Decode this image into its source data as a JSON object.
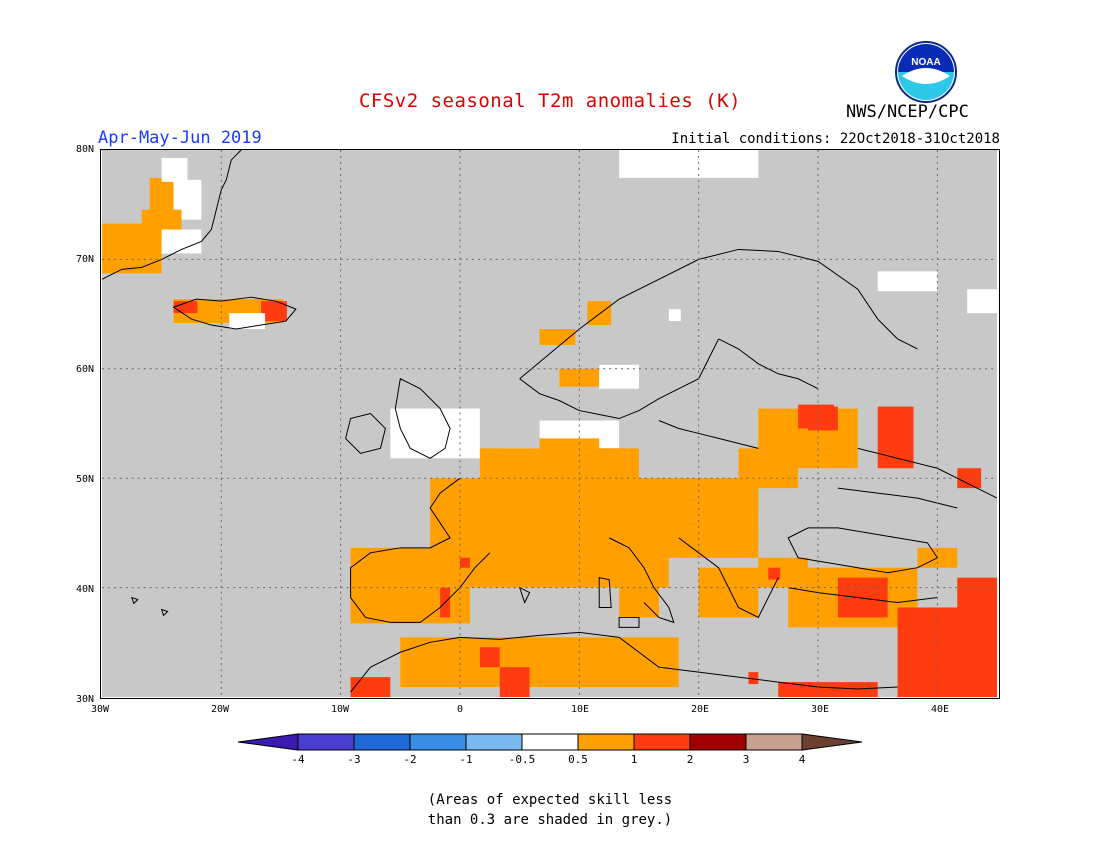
{
  "header": {
    "title": "CFSv2 seasonal T2m anomalies (K)",
    "agency": "NWS/NCEP/CPC",
    "period": "Apr-May-Jun 2019",
    "initial_conditions": "Initial conditions: 22Oct2018-31Oct2018",
    "logo_text": "NOAA"
  },
  "map": {
    "lon_range": [
      -30,
      45
    ],
    "lat_range": [
      30,
      80
    ],
    "lat_labels": [
      "80N",
      "70N",
      "60N",
      "50N",
      "40N",
      "30N"
    ],
    "lon_labels": [
      "30W",
      "20W",
      "10W",
      "0",
      "10E",
      "20E",
      "30E",
      "40E"
    ],
    "background_color": "#c8c8c8",
    "grid_style": "dotted"
  },
  "colorbar": {
    "colors": [
      "#3a1ab0",
      "#4a3ed0",
      "#1f68d8",
      "#3b8ee8",
      "#7ab8f0",
      "#ffffff",
      "#ff9f00",
      "#ff3c10",
      "#a00000",
      "#c8a090",
      "#6b4030"
    ],
    "labels": [
      "-4",
      "-3",
      "-2",
      "-1",
      "-0.5",
      "0.5",
      "1",
      "2",
      "3",
      "4"
    ]
  },
  "legend_colors": {
    "ocean_land_grey": "#c8c8c8",
    "warm_0_5_1": "#ff9f00",
    "warm_1_2": "#ff3c10",
    "neutral": "#ffffff"
  },
  "note": {
    "line1": "(Areas of expected skill less",
    "line2": "than 0.3 are shaded in grey.)"
  }
}
